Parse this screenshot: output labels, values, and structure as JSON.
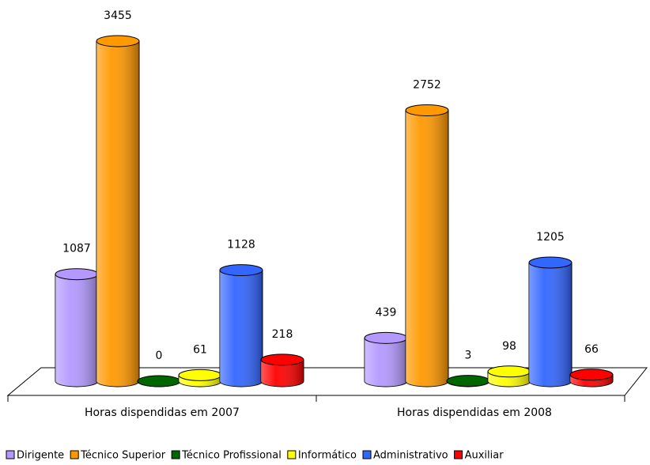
{
  "chart_data": {
    "type": "bar",
    "categories": [
      "Horas dispendidas em 2007",
      "Horas dispendidas em 2008"
    ],
    "series": [
      {
        "name": "Dirigente",
        "color": "#b399ff",
        "values": [
          1087,
          439
        ]
      },
      {
        "name": "Técnico Superior",
        "color": "#ff9900",
        "values": [
          3455,
          2752
        ]
      },
      {
        "name": "Técnico Profissional",
        "color": "#006600",
        "values": [
          0,
          3
        ]
      },
      {
        "name": "Informático",
        "color": "#ffff00",
        "values": [
          61,
          98
        ]
      },
      {
        "name": "Administrativo",
        "color": "#3366ff",
        "values": [
          1128,
          1205
        ]
      },
      {
        "name": "Auxiliar",
        "color": "#ff0000",
        "values": [
          218,
          66
        ]
      }
    ]
  }
}
